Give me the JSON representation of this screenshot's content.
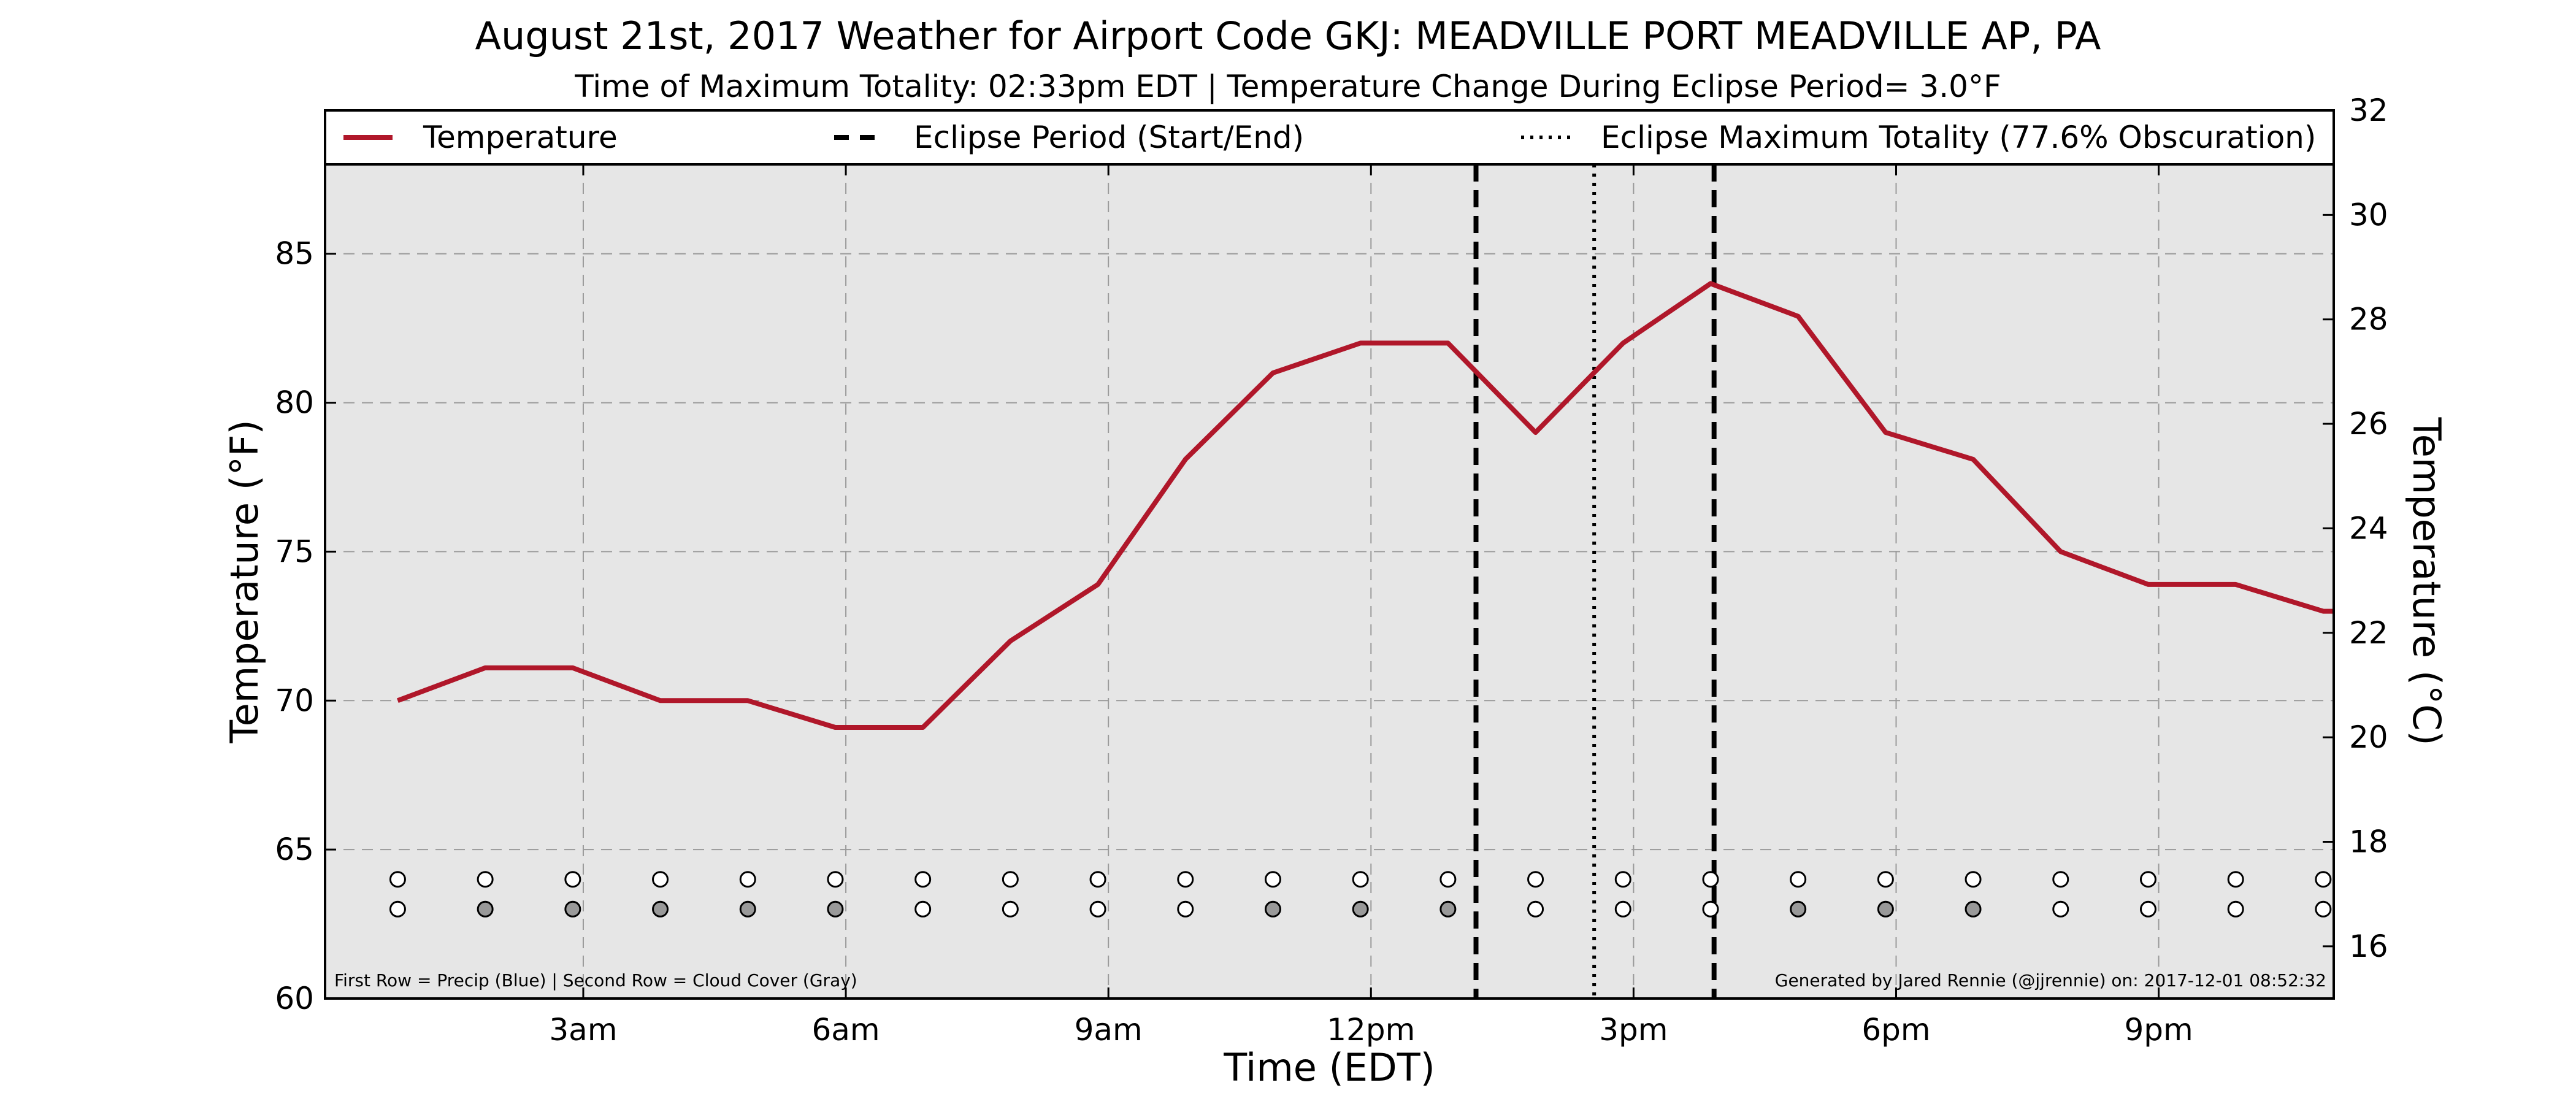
{
  "title": "August 21st, 2017 Weather for Airport Code GKJ: MEADVILLE PORT MEADVILLE AP, PA",
  "subtitle": "Time of Maximum Totality: 02:33pm EDT | Temperature Change During Eclipse Period= 3.0°F",
  "legend": {
    "temperature": "Temperature",
    "eclipse_period": "Eclipse Period (Start/End)",
    "eclipse_max": "Eclipse Maximum Totality (77.6% Obscuration)"
  },
  "footnote_left": "First Row = Precip (Blue) | Second Row = Cloud Cover (Gray)",
  "footnote_right": "Generated by Jared Rennie (@jjrennie) on: 2017-12-01 08:52:32",
  "colors": {
    "temperature_line": "#b0172a",
    "plot_background": "#e6e6e6",
    "cloud_gray": "#999999",
    "empty_marker": "#ffffff"
  },
  "chart_data": {
    "type": "line",
    "xlabel": "Time (EDT)",
    "ylabel": "Temperature (°F)",
    "ylabel_right": "Temperature (°C)",
    "xlim_hours": [
      0.05,
      23.0
    ],
    "ylim": [
      60,
      88
    ],
    "ylim_right": [
      15,
      32
    ],
    "x_ticks": [
      {
        "hour": 3,
        "label": "3am"
      },
      {
        "hour": 6,
        "label": "6am"
      },
      {
        "hour": 9,
        "label": "9am"
      },
      {
        "hour": 12,
        "label": "12pm"
      },
      {
        "hour": 15,
        "label": "3pm"
      },
      {
        "hour": 18,
        "label": "6pm"
      },
      {
        "hour": 21,
        "label": "9pm"
      }
    ],
    "y_ticks": [
      60,
      65,
      70,
      75,
      80,
      85
    ],
    "y_ticks_right": [
      16,
      18,
      20,
      22,
      24,
      26,
      28,
      30,
      32
    ],
    "grid": true,
    "legend_position": "top",
    "series": [
      {
        "name": "Temperature",
        "x_hours": [
          0.88,
          1.88,
          2.88,
          3.88,
          4.88,
          5.88,
          6.88,
          7.88,
          8.88,
          9.88,
          10.88,
          11.88,
          12.88,
          13.88,
          14.88,
          15.88,
          16.88,
          17.88,
          18.88,
          19.88,
          20.88,
          21.88,
          22.88,
          23.0
        ],
        "values": [
          70,
          71.1,
          71.1,
          70,
          70,
          69.1,
          69.1,
          72,
          73.9,
          78.1,
          81,
          82,
          82,
          79,
          82,
          84,
          82.9,
          79,
          78.1,
          75,
          73.9,
          73.9,
          73,
          73
        ]
      }
    ],
    "eclipse_start_hour": 13.2,
    "eclipse_end_hour": 15.92,
    "eclipse_max_hour": 14.55,
    "marker_rows": {
      "row_levels": [
        64,
        63
      ],
      "x_hours": [
        0.88,
        1.88,
        2.88,
        3.88,
        4.88,
        5.88,
        6.88,
        7.88,
        8.88,
        9.88,
        10.88,
        11.88,
        12.88,
        13.88,
        14.88,
        15.88,
        16.88,
        17.88,
        18.88,
        19.88,
        20.88,
        21.88,
        22.88
      ],
      "precip": [
        0,
        0,
        0,
        0,
        0,
        0,
        0,
        0,
        0,
        0,
        0,
        0,
        0,
        0,
        0,
        0,
        0,
        0,
        0,
        0,
        0,
        0,
        0
      ],
      "cloud_cover": [
        0,
        1,
        1,
        1,
        1,
        1,
        0,
        0,
        0,
        0,
        1,
        1,
        1,
        0,
        0,
        0,
        1,
        1,
        1,
        0,
        0,
        0,
        0
      ]
    }
  }
}
